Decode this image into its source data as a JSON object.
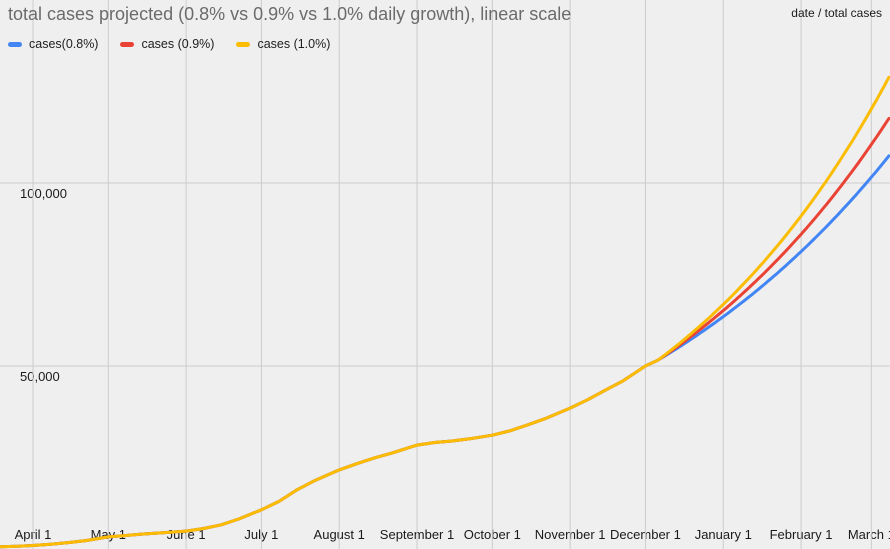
{
  "chart": {
    "title": "total cases projected (0.8% vs 0.9% vs 1.0% daily growth), linear scale",
    "axis_corner_label": "date / total cases"
  },
  "colors": {
    "background": "#efefef",
    "gridline": "#cccccc",
    "title_text": "#6b6b6b",
    "axis_text": "#1a1a1a",
    "series_blue": "#4285f4",
    "series_red": "#ea4335",
    "series_yellow": "#fbbc04"
  },
  "chart_data": {
    "type": "line",
    "title": "total cases projected (0.8% vs 0.9% vs 1.0% daily growth), linear scale",
    "x_axis_label": "date",
    "y_axis_label": "total cases",
    "legend_position": "top-left",
    "grid": true,
    "ylim": [
      0,
      150000
    ],
    "x_categories": [
      {
        "label": "April 1",
        "day": 0
      },
      {
        "label": "May 1",
        "day": 30
      },
      {
        "label": "June 1",
        "day": 61
      },
      {
        "label": "July 1",
        "day": 91
      },
      {
        "label": "August 1",
        "day": 122
      },
      {
        "label": "September 1",
        "day": 153
      },
      {
        "label": "October 1",
        "day": 183
      },
      {
        "label": "November 1",
        "day": 214
      },
      {
        "label": "December 1",
        "day": 244
      },
      {
        "label": "January 1",
        "day": 275
      },
      {
        "label": "February 1",
        "day": 306
      },
      {
        "label": "March 1",
        "day": 334
      }
    ],
    "y_ticks": [
      {
        "label": "50,000",
        "value": 50000
      },
      {
        "label": "100,000",
        "value": 100000
      }
    ],
    "series": [
      {
        "name": "cases(0.8%)",
        "color": "#4285f4",
        "daily_growth_pct": 0.8,
        "projection_samples": [
          [
            "Dec 6",
            51600
          ],
          [
            "Jan 1",
            63500
          ],
          [
            "Feb 1",
            81200
          ],
          [
            "Mar 1",
            101500
          ],
          [
            "Mar 8",
            107400
          ]
        ]
      },
      {
        "name": "cases (0.9%)",
        "color": "#ea4335",
        "daily_growth_pct": 0.9,
        "projection_samples": [
          [
            "Dec 6",
            51600
          ],
          [
            "Jan 1",
            65100
          ],
          [
            "Feb 1",
            86000
          ],
          [
            "Mar 1",
            110500
          ],
          [
            "Mar 8",
            117700
          ]
        ]
      },
      {
        "name": "cases (1.0%)",
        "color": "#fbbc04",
        "daily_growth_pct": 1.0,
        "projection_samples": [
          [
            "Dec 6",
            51600
          ],
          [
            "Jan 1",
            66800
          ],
          [
            "Feb 1",
            91000
          ],
          [
            "Mar 1",
            120200
          ],
          [
            "Mar 8",
            128900
          ]
        ]
      }
    ],
    "projection": {
      "start_date": "Dec 6",
      "start_day": 249,
      "start_value": 51600,
      "end_date": "Mar 8",
      "end_day": 341
    },
    "actual_points": [
      {
        "date": "Mar 19",
        "day": -13,
        "value": 600
      },
      {
        "date": "Mar 26",
        "day": -6,
        "value": 750
      },
      {
        "date": "Apr 1",
        "day": 0,
        "value": 950
      },
      {
        "date": "Apr 8",
        "day": 7,
        "value": 1300
      },
      {
        "date": "Apr 15",
        "day": 14,
        "value": 1750
      },
      {
        "date": "Apr 22",
        "day": 21,
        "value": 2300
      },
      {
        "date": "May 1",
        "day": 30,
        "value": 3300
      },
      {
        "date": "May 8",
        "day": 37,
        "value": 3700
      },
      {
        "date": "May 15",
        "day": 44,
        "value": 4100
      },
      {
        "date": "May 22",
        "day": 51,
        "value": 4400
      },
      {
        "date": "Jun 1",
        "day": 61,
        "value": 4900
      },
      {
        "date": "Jun 8",
        "day": 68,
        "value": 5600
      },
      {
        "date": "Jun 15",
        "day": 75,
        "value": 6600
      },
      {
        "date": "Jun 22",
        "day": 82,
        "value": 8200
      },
      {
        "date": "Jul 1",
        "day": 91,
        "value": 10700
      },
      {
        "date": "Jul 8",
        "day": 98,
        "value": 13000
      },
      {
        "date": "Jul 15",
        "day": 105,
        "value": 16100
      },
      {
        "date": "Jul 22",
        "day": 112,
        "value": 18600
      },
      {
        "date": "Aug 1",
        "day": 122,
        "value": 21600
      },
      {
        "date": "Aug 8",
        "day": 129,
        "value": 23300
      },
      {
        "date": "Aug 15",
        "day": 136,
        "value": 24900
      },
      {
        "date": "Aug 22",
        "day": 143,
        "value": 26200
      },
      {
        "date": "Sep 1",
        "day": 153,
        "value": 28400
      },
      {
        "date": "Sep 8",
        "day": 160,
        "value": 29100
      },
      {
        "date": "Sep 15",
        "day": 167,
        "value": 29500
      },
      {
        "date": "Sep 22",
        "day": 174,
        "value": 30100
      },
      {
        "date": "Oct 1",
        "day": 183,
        "value": 31100
      },
      {
        "date": "Oct 8",
        "day": 190,
        "value": 32300
      },
      {
        "date": "Oct 15",
        "day": 197,
        "value": 33900
      },
      {
        "date": "Oct 22",
        "day": 204,
        "value": 35600
      },
      {
        "date": "Nov 1",
        "day": 214,
        "value": 38500
      },
      {
        "date": "Nov 8",
        "day": 221,
        "value": 40800
      },
      {
        "date": "Nov 15",
        "day": 228,
        "value": 43400
      },
      {
        "date": "Nov 22",
        "day": 235,
        "value": 45900
      },
      {
        "date": "Dec 1",
        "day": 244,
        "value": 50000
      },
      {
        "date": "Dec 6",
        "day": 249,
        "value": 51600
      }
    ]
  }
}
